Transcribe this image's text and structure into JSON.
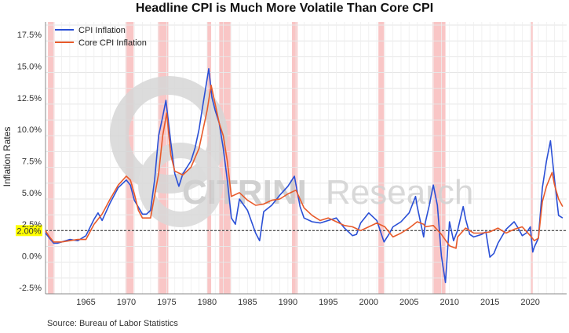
{
  "chart_data": {
    "type": "line",
    "title": "Headline CPI is Much More Volatile Than Core CPI",
    "ylabel": "Inflation Rates",
    "xlabel": "",
    "source": "Source: Bureau of Labor Statistics",
    "ylim": [
      -3,
      18.5
    ],
    "xlim": [
      1960,
      2024.5
    ],
    "yticks": [
      -2.5,
      0,
      2.5,
      5,
      7.5,
      10,
      12.5,
      15,
      17.5
    ],
    "ytick_labels": [
      "-2.5%",
      "0.0%",
      "2.5%",
      "5.0%",
      "7.5%",
      "10.0%",
      "12.5%",
      "15.0%",
      "17.5%"
    ],
    "xticks": [
      1965,
      1970,
      1975,
      1980,
      1985,
      1990,
      1995,
      2000,
      2005,
      2010,
      2015,
      2020
    ],
    "xtick_labels": [
      "1965",
      "1970",
      "1975",
      "1980",
      "1985",
      "1990",
      "1995",
      "2000",
      "2005",
      "2010",
      "2015",
      "2020"
    ],
    "reference_line": {
      "value": 2.0,
      "label": "2.00%",
      "label_color": "#ffff00"
    },
    "recessions": [
      [
        1960.3,
        1961.1
      ],
      [
        1969.9,
        1970.9
      ],
      [
        1973.9,
        1975.2
      ],
      [
        1980.0,
        1980.5
      ],
      [
        1981.5,
        1982.9
      ],
      [
        1990.5,
        1991.2
      ],
      [
        2001.2,
        2001.9
      ],
      [
        2007.9,
        2009.5
      ],
      [
        2020.1,
        2020.3
      ]
    ],
    "recession_color": "#f7b3b3",
    "legend": {
      "position": "top-left",
      "entries": [
        "CPI Inflation",
        "Core CPI Inflation"
      ]
    },
    "series": [
      {
        "name": "CPI Inflation",
        "color": "#2a4fd6",
        "x": [
          1960,
          1960.5,
          1961,
          1961.5,
          1962,
          1963,
          1964,
          1965,
          1966,
          1966.5,
          1967,
          1968,
          1969,
          1970,
          1970.5,
          1971,
          1972,
          1972.5,
          1973,
          1973.5,
          1974,
          1974.5,
          1974.9,
          1975.5,
          1976,
          1976.5,
          1977,
          1978,
          1978.5,
          1979,
          1979.5,
          1980.2,
          1980.6,
          1981,
          1981.5,
          1982,
          1982.5,
          1983,
          1983.5,
          1984,
          1985,
          1986,
          1986.5,
          1987,
          1988,
          1989,
          1990,
          1990.8,
          1991.5,
          1992,
          1993,
          1994,
          1995,
          1996,
          1997,
          1998,
          1998.5,
          1999,
          2000,
          2001,
          2001.9,
          2002.5,
          2003,
          2004,
          2005,
          2005.8,
          2006,
          2006.8,
          2007,
          2007.5,
          2008,
          2008.5,
          2009,
          2009.5,
          2010,
          2010.5,
          2011,
          2011.7,
          2012,
          2012.5,
          2013,
          2014,
          2014.5,
          2015,
          2015.5,
          2016,
          2017,
          2018,
          2018.5,
          2019,
          2019.5,
          2020,
          2020.3,
          2020.5,
          2021,
          2021.5,
          2022,
          2022.5,
          2023,
          2023.5,
          2024
        ],
        "values": [
          1.8,
          1.4,
          1.0,
          1.0,
          1.1,
          1.3,
          1.2,
          1.6,
          2.9,
          3.4,
          2.8,
          4.2,
          5.4,
          6.0,
          5.6,
          4.4,
          3.3,
          3.3,
          3.6,
          6.0,
          9.5,
          11.0,
          12.3,
          9.0,
          6.5,
          5.5,
          6.5,
          7.5,
          8.5,
          10.0,
          12.0,
          14.8,
          12.5,
          11.5,
          10.5,
          8.5,
          6.0,
          3.0,
          2.5,
          4.5,
          3.6,
          1.8,
          1.2,
          3.5,
          4.0,
          4.8,
          5.5,
          6.3,
          3.9,
          3.0,
          2.7,
          2.6,
          2.8,
          3.0,
          2.2,
          1.6,
          1.7,
          2.6,
          3.4,
          2.8,
          1.1,
          1.7,
          2.3,
          2.7,
          3.4,
          4.7,
          3.9,
          1.5,
          2.6,
          4.0,
          5.6,
          4.0,
          0.0,
          -2.1,
          2.7,
          1.2,
          2.0,
          3.9,
          2.9,
          1.7,
          1.5,
          1.7,
          1.9,
          -0.1,
          0.2,
          1.0,
          2.1,
          2.7,
          2.2,
          1.6,
          1.8,
          2.3,
          0.3,
          0.7,
          1.4,
          5.4,
          7.5,
          9.1,
          6.0,
          3.2,
          3.0
        ]
      },
      {
        "name": "Core CPI Inflation",
        "color": "#e85a2a",
        "x": [
          1960,
          1960.5,
          1961,
          1962,
          1963,
          1964,
          1965,
          1966,
          1967,
          1968,
          1969,
          1970,
          1970.5,
          1971,
          1971.5,
          1972,
          1973,
          1974,
          1974.5,
          1975,
          1975.5,
          1976,
          1977,
          1978,
          1979,
          1980,
          1980.5,
          1981,
          1981.5,
          1982,
          1982.5,
          1983,
          1984,
          1985,
          1986,
          1987,
          1988,
          1989,
          1990,
          1991,
          1992,
          1993,
          1994,
          1995,
          1996,
          1997,
          1998,
          1999,
          2000,
          2001,
          2002,
          2003,
          2004,
          2005,
          2006,
          2006.8,
          2007,
          2008,
          2009,
          2010,
          2010.8,
          2011,
          2012,
          2013,
          2014,
          2015,
          2016,
          2017,
          2018,
          2019,
          2020,
          2020.5,
          2021,
          2021.5,
          2022,
          2022.7,
          2023,
          2023.5,
          2024
        ],
        "values": [
          2.0,
          1.5,
          1.1,
          1.1,
          1.2,
          1.3,
          1.3,
          2.5,
          3.3,
          4.5,
          5.6,
          6.3,
          6.0,
          4.9,
          3.6,
          3.0,
          3.0,
          6.5,
          9.5,
          11.3,
          8.0,
          6.7,
          6.4,
          7.0,
          8.5,
          11.5,
          13.5,
          12.0,
          10.5,
          9.5,
          7.5,
          4.7,
          5.0,
          4.4,
          4.0,
          4.1,
          4.4,
          4.5,
          4.9,
          5.2,
          3.8,
          3.2,
          2.8,
          3.0,
          2.7,
          2.4,
          2.3,
          2.0,
          2.3,
          2.6,
          2.3,
          1.5,
          1.8,
          2.2,
          2.7,
          2.5,
          2.3,
          2.4,
          1.7,
          0.8,
          0.6,
          1.5,
          2.2,
          1.8,
          1.8,
          1.9,
          2.2,
          1.8,
          2.1,
          2.3,
          1.6,
          1.2,
          1.4,
          4.3,
          5.5,
          6.6,
          5.6,
          4.5,
          3.9
        ]
      }
    ]
  },
  "watermark": {
    "word_left": "CITRINI",
    "word_right": "Research"
  }
}
